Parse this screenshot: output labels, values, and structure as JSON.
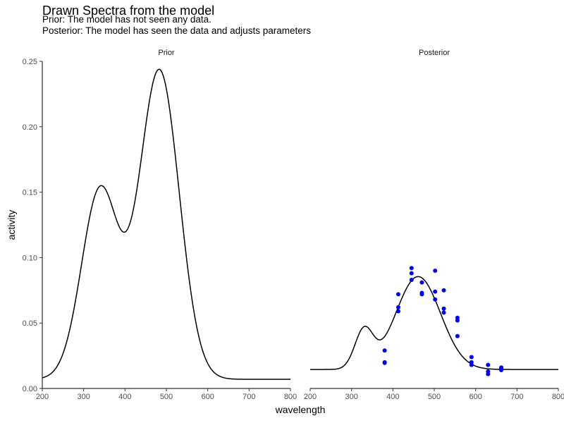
{
  "chart_data": {
    "type": "line",
    "title": "Drawn Spectra from the model",
    "subtitle_lines": [
      "Prior: The model has not seen any data.",
      "Posterior: The model has seen the data and adjusts parameters"
    ],
    "xlabel": "wavelength",
    "ylabel": "activity",
    "xlim": [
      200,
      800
    ],
    "ylim": [
      0,
      0.25
    ],
    "x_ticks": [
      200,
      300,
      400,
      500,
      600,
      700,
      800
    ],
    "y_ticks": [
      0.0,
      0.05,
      0.1,
      0.15,
      0.2,
      0.25
    ],
    "y_tick_labels": [
      "0.00",
      "0.05",
      "0.10",
      "0.15",
      "0.20",
      "0.25"
    ],
    "grid": false,
    "panels": [
      {
        "label": "Prior",
        "line_color": "#000000",
        "curve": {
          "baseline": 0.007,
          "components": [
            {
              "amplitude": 0.145,
              "center": 340,
              "sigma": 45
            },
            {
              "amplitude": 0.236,
              "center": 483,
              "sigma": 48
            }
          ]
        }
      },
      {
        "label": "Posterior",
        "line_color": "#000000",
        "point_color": "#0000ff",
        "curve": {
          "baseline": 0.0145,
          "components": [
            {
              "amplitude": 0.029,
              "center": 330,
              "sigma": 22
            },
            {
              "amplitude": 0.071,
              "center": 461,
              "sigma": 54
            }
          ]
        },
        "points": [
          {
            "x": 380,
            "y": 0.029
          },
          {
            "x": 380,
            "y": 0.02
          },
          {
            "x": 380,
            "y": 0.0195
          },
          {
            "x": 413,
            "y": 0.072
          },
          {
            "x": 413,
            "y": 0.062
          },
          {
            "x": 413,
            "y": 0.059
          },
          {
            "x": 445,
            "y": 0.092
          },
          {
            "x": 445,
            "y": 0.088
          },
          {
            "x": 445,
            "y": 0.083
          },
          {
            "x": 470,
            "y": 0.081
          },
          {
            "x": 470,
            "y": 0.073
          },
          {
            "x": 470,
            "y": 0.072
          },
          {
            "x": 502,
            "y": 0.09
          },
          {
            "x": 502,
            "y": 0.074
          },
          {
            "x": 502,
            "y": 0.068
          },
          {
            "x": 523,
            "y": 0.075
          },
          {
            "x": 523,
            "y": 0.061
          },
          {
            "x": 523,
            "y": 0.058
          },
          {
            "x": 556,
            "y": 0.054
          },
          {
            "x": 556,
            "y": 0.052
          },
          {
            "x": 556,
            "y": 0.04
          },
          {
            "x": 590,
            "y": 0.024
          },
          {
            "x": 590,
            "y": 0.02
          },
          {
            "x": 590,
            "y": 0.018
          },
          {
            "x": 630,
            "y": 0.018
          },
          {
            "x": 630,
            "y": 0.013
          },
          {
            "x": 630,
            "y": 0.011
          },
          {
            "x": 662,
            "y": 0.016
          },
          {
            "x": 662,
            "y": 0.015
          },
          {
            "x": 662,
            "y": 0.014
          }
        ]
      }
    ]
  }
}
